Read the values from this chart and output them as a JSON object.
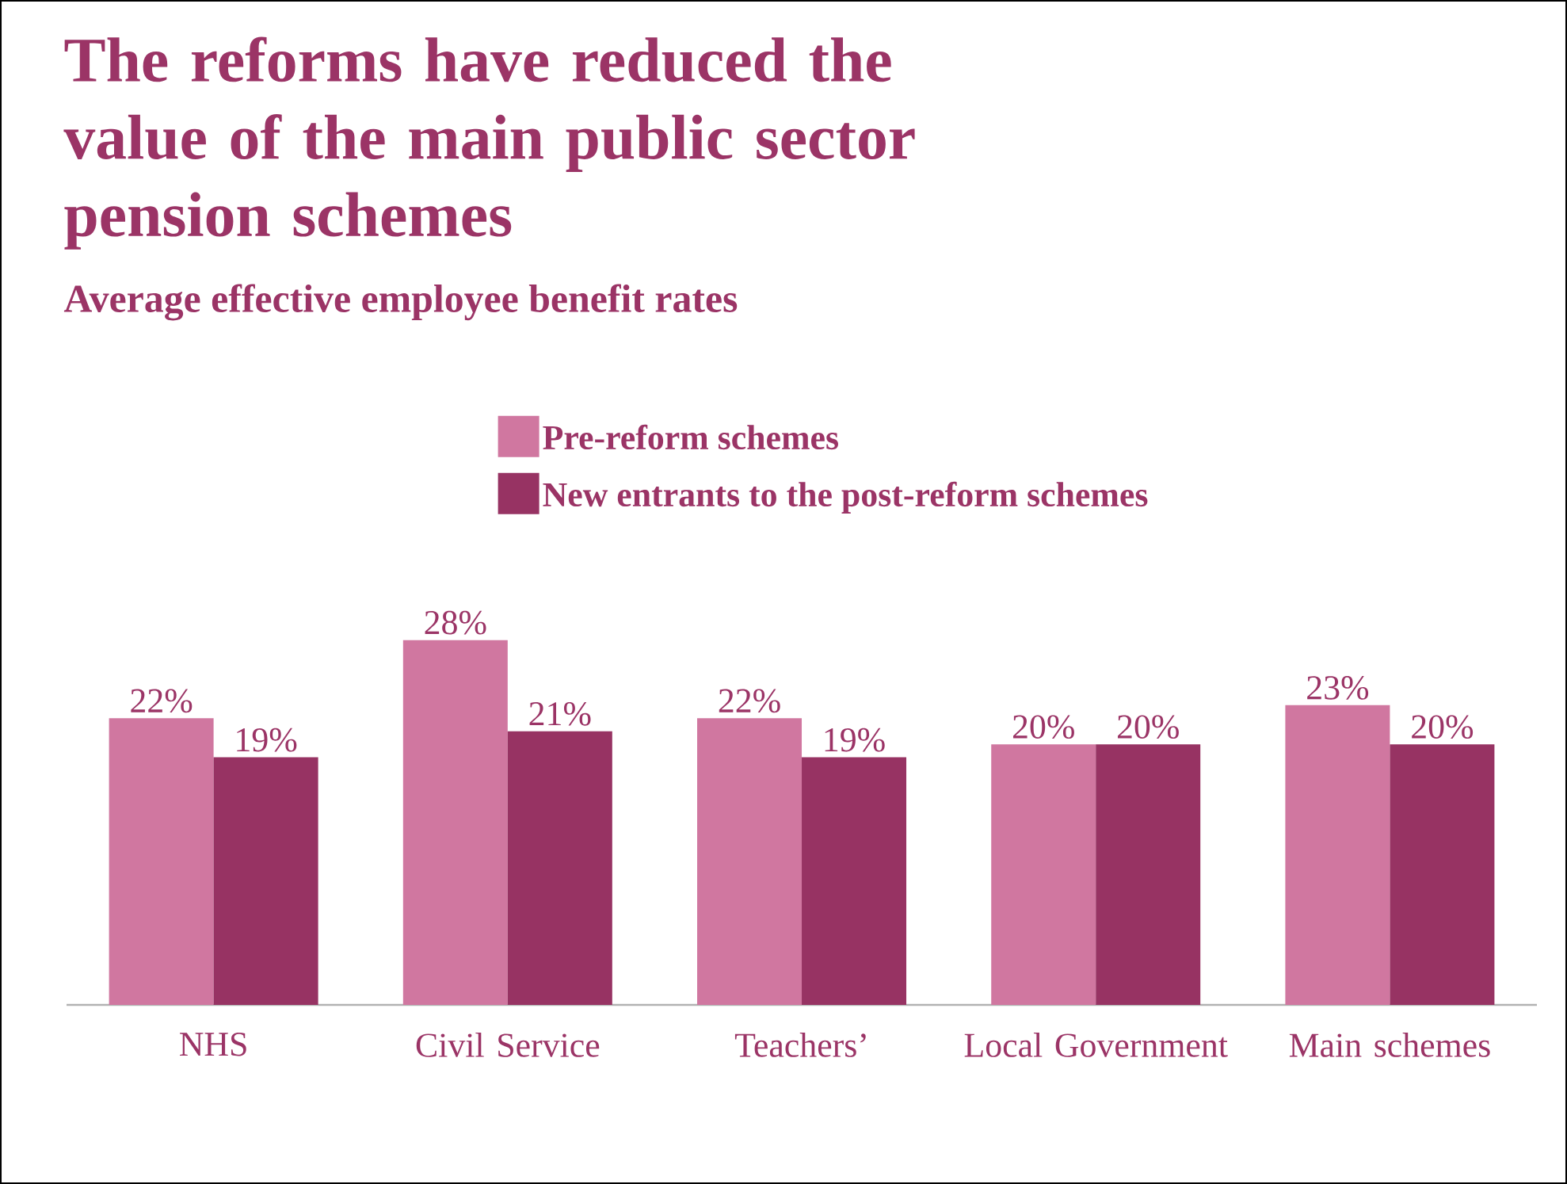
{
  "chart_data": {
    "type": "bar",
    "title": "The reforms have reduced the value of the main public sector pension schemes",
    "subtitle": "Average effective employee benefit rates",
    "categories": [
      "NHS",
      "Civil Service",
      "Teachers’",
      "Local Government",
      "Main schemes"
    ],
    "series": [
      {
        "name": "Pre-reform schemes",
        "color": "#d077a0",
        "values": [
          22,
          28,
          22,
          20,
          23
        ],
        "value_labels": [
          "22%",
          "28%",
          "22%",
          "20%",
          "23%"
        ]
      },
      {
        "name": "New entrants to the post-reform schemes",
        "color": "#973363",
        "values": [
          19,
          21,
          19,
          20,
          20
        ],
        "value_labels": [
          "19%",
          "21%",
          "19%",
          "20%",
          "20%"
        ]
      }
    ],
    "legend": "top"
  }
}
